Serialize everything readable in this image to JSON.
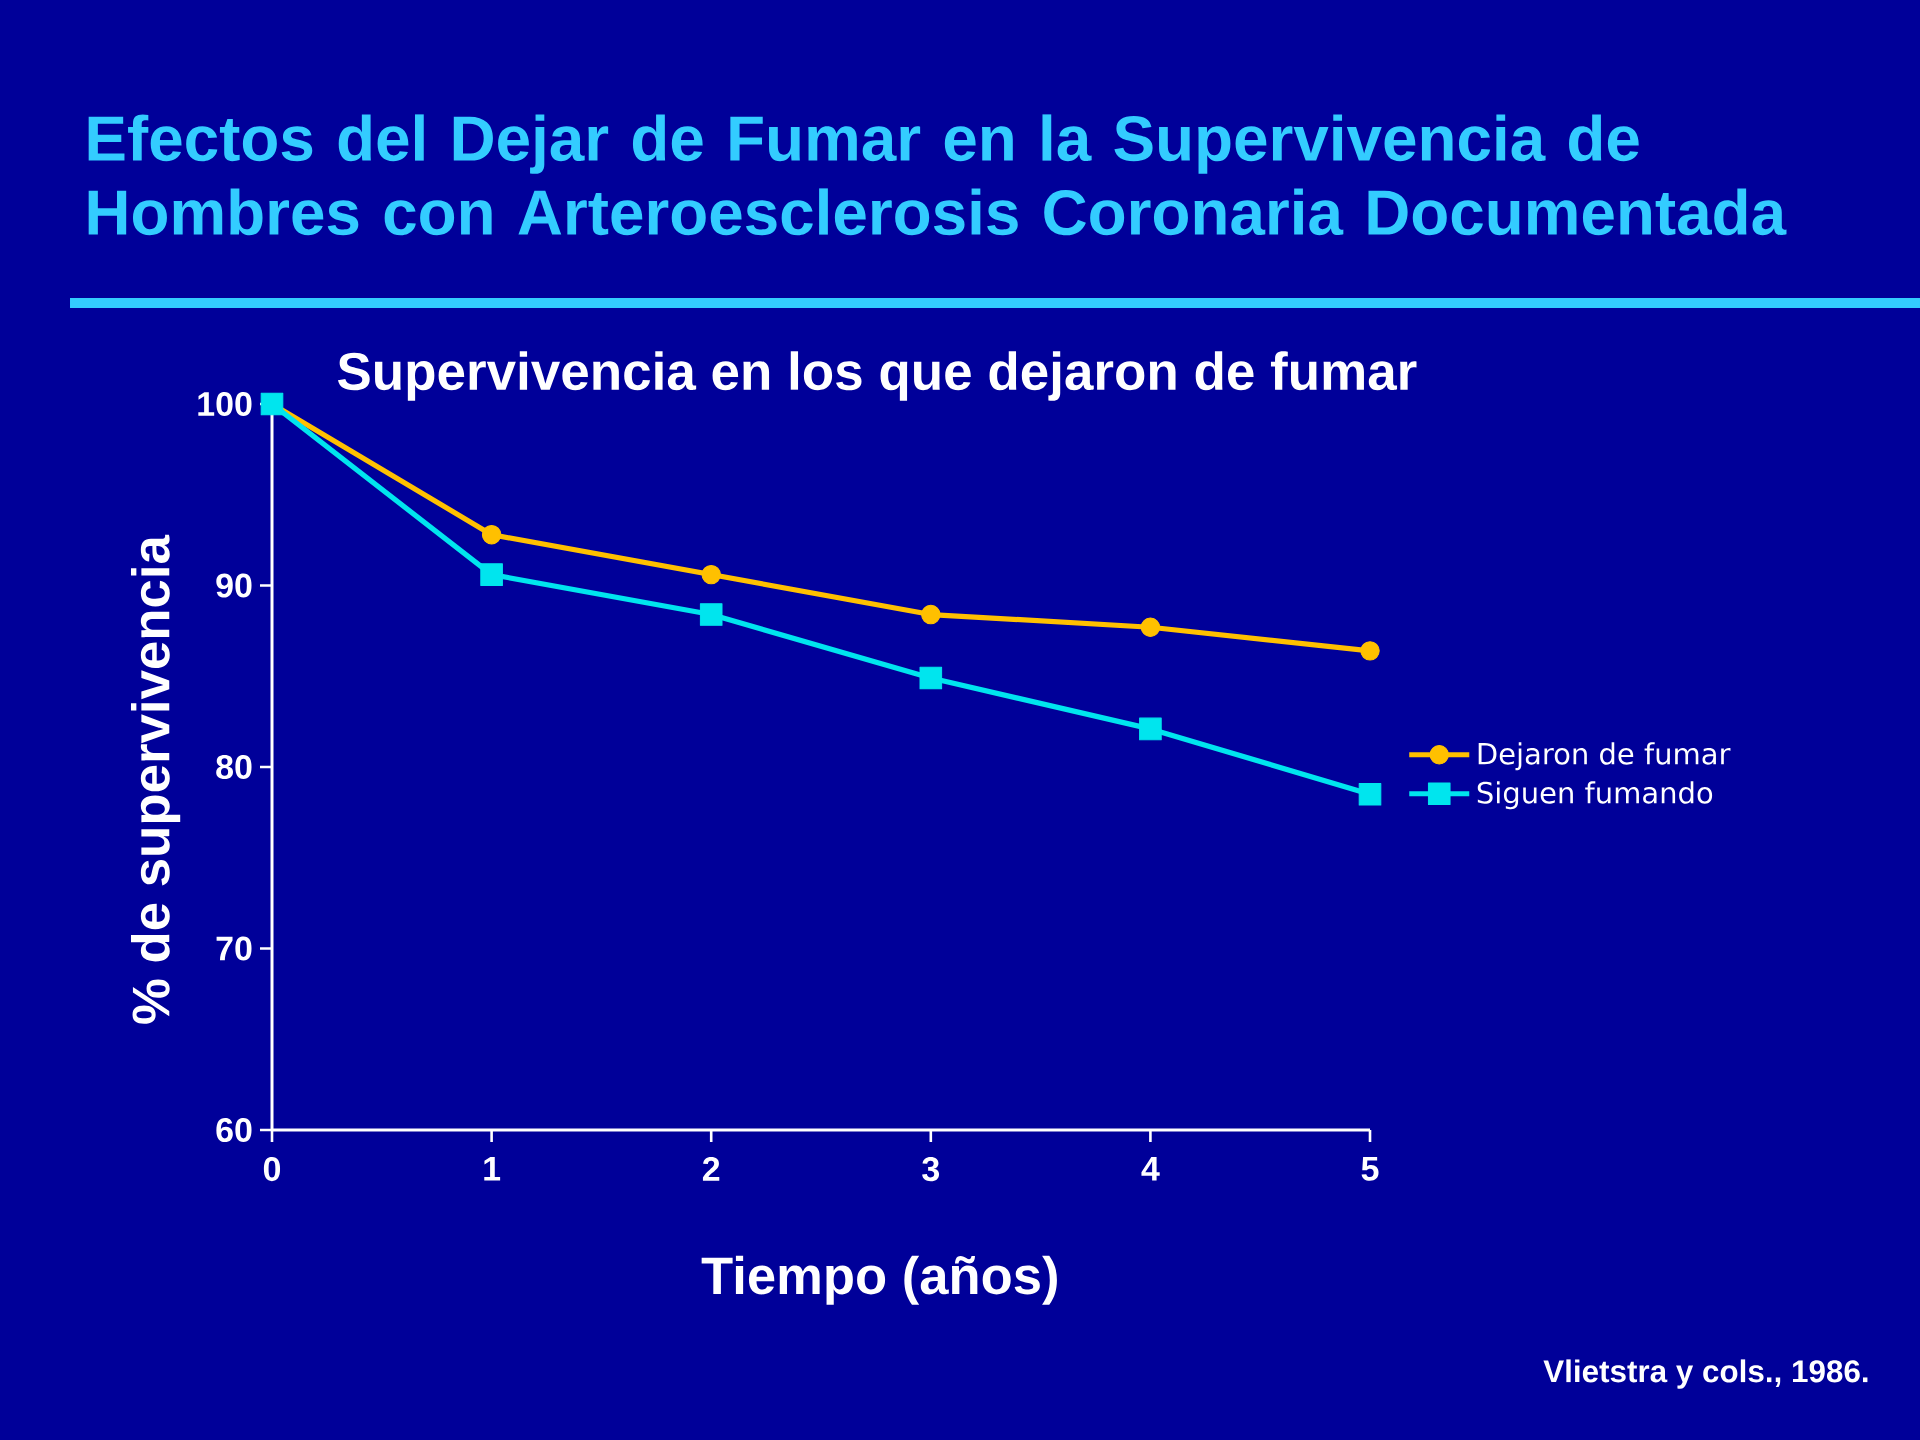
{
  "chart_data": {
    "type": "line",
    "title": "Efectos del Dejar de Fumar en la Supervivencia de Hombres con Arteroesclerosis Coronaria Documentada",
    "subtitle": "Supervivencia en los que dejaron de fumar",
    "xlabel": "Tiempo (años)",
    "ylabel": "% de supervivencia",
    "x": [
      0,
      1,
      2,
      3,
      4,
      5
    ],
    "series": [
      {
        "name": "Dejaron de fumar",
        "color": "#FFC000",
        "marker": "circle",
        "values": [
          100,
          92.8,
          90.6,
          88.4,
          87.7,
          86.4
        ]
      },
      {
        "name": "Siguen fumando",
        "color": "#00E5EE",
        "marker": "square",
        "values": [
          100,
          90.6,
          88.4,
          84.9,
          82.1,
          78.5
        ]
      }
    ],
    "xlim": [
      0,
      5
    ],
    "xticks": [
      0,
      1,
      2,
      3,
      4,
      5
    ],
    "ylim": [
      60,
      100
    ],
    "yticks": [
      60,
      70,
      80,
      90,
      100
    ],
    "legend": "right",
    "annotations": [
      "Vlietstra y cols., 1986."
    ]
  }
}
